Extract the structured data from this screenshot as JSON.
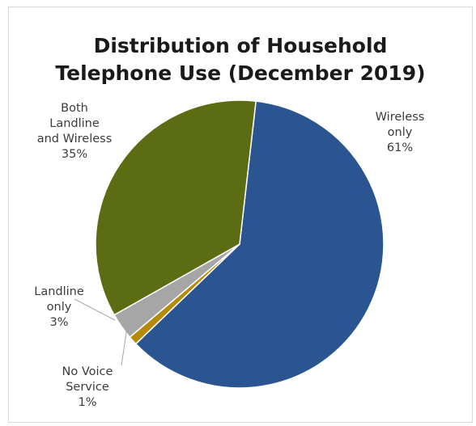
{
  "chart_data": {
    "type": "pie",
    "title_lines": [
      "Distribution of Household",
      "Telephone Use (December 2019)"
    ],
    "slices": [
      {
        "label_lines": [
          "Wireless",
          "only"
        ],
        "value": 61,
        "value_text": "61%",
        "color": "#2b5591"
      },
      {
        "label_lines": [
          "No Voice",
          "Service"
        ],
        "value": 1,
        "value_text": "1%",
        "color": "#b58a0a"
      },
      {
        "label_lines": [
          "Landline",
          "only"
        ],
        "value": 3,
        "value_text": "3%",
        "color": "#a6a6a6"
      },
      {
        "label_lines": [
          "Both",
          "Landline",
          "and Wireless"
        ],
        "value": 35,
        "value_text": "35%",
        "color": "#5c6c12"
      }
    ]
  }
}
